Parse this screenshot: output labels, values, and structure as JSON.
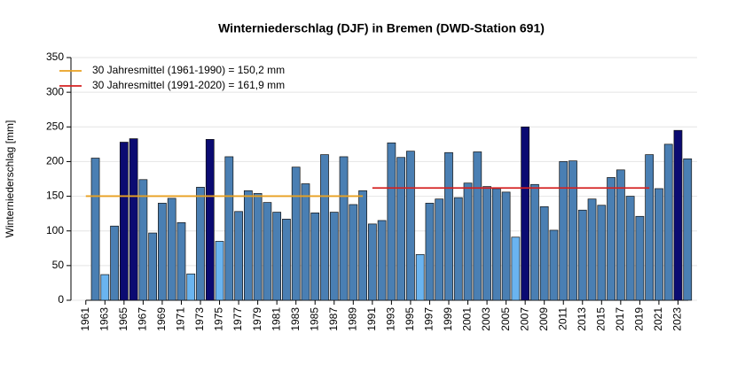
{
  "chart_data": {
    "type": "bar",
    "title": "Winterniederschlag (DJF) in Bremen (DWD-Station 691)",
    "y_label": "Winterniederschlag [mm]",
    "x": [
      1962,
      1963,
      1964,
      1965,
      1966,
      1967,
      1968,
      1969,
      1970,
      1971,
      1972,
      1973,
      1974,
      1975,
      1976,
      1977,
      1978,
      1979,
      1980,
      1981,
      1982,
      1983,
      1984,
      1985,
      1986,
      1987,
      1988,
      1989,
      1990,
      1991,
      1992,
      1993,
      1994,
      1995,
      1996,
      1997,
      1998,
      1999,
      2000,
      2001,
      2002,
      2003,
      2004,
      2005,
      2006,
      2007,
      2008,
      2009,
      2010,
      2011,
      2012,
      2013,
      2014,
      2015,
      2016,
      2017,
      2018,
      2019,
      2020,
      2021,
      2022,
      2023,
      2024
    ],
    "values": [
      205,
      37,
      107,
      228,
      233,
      174,
      97,
      140,
      147,
      112,
      38,
      163,
      232,
      85,
      207,
      128,
      158,
      154,
      141,
      127,
      117,
      192,
      168,
      126,
      210,
      127,
      207,
      138,
      158,
      110,
      115,
      227,
      206,
      215,
      66,
      140,
      146,
      213,
      148,
      169,
      214,
      164,
      161,
      156,
      91,
      250,
      167,
      135,
      101,
      200,
      201,
      130,
      146,
      137,
      177,
      188,
      150,
      121,
      210,
      161,
      225,
      245,
      204
    ],
    "colors": [
      "#4a7fb3",
      "#6ab4f0",
      "#4a7fb3",
      "#0b0b72",
      "#0b0b72",
      "#4a7fb3",
      "#4a7fb3",
      "#4a7fb3",
      "#4a7fb3",
      "#4a7fb3",
      "#6ab4f0",
      "#4a7fb3",
      "#0b0b72",
      "#6ab4f0",
      "#4a7fb3",
      "#4a7fb3",
      "#4a7fb3",
      "#4a7fb3",
      "#4a7fb3",
      "#4a7fb3",
      "#4a7fb3",
      "#4a7fb3",
      "#4a7fb3",
      "#4a7fb3",
      "#4a7fb3",
      "#4a7fb3",
      "#4a7fb3",
      "#4a7fb3",
      "#4a7fb3",
      "#4a7fb3",
      "#4a7fb3",
      "#4a7fb3",
      "#4a7fb3",
      "#4a7fb3",
      "#6ab4f0",
      "#4a7fb3",
      "#4a7fb3",
      "#4a7fb3",
      "#4a7fb3",
      "#4a7fb3",
      "#4a7fb3",
      "#4a7fb3",
      "#4a7fb3",
      "#4a7fb3",
      "#6ab4f0",
      "#0b0b72",
      "#4a7fb3",
      "#4a7fb3",
      "#4a7fb3",
      "#4a7fb3",
      "#4a7fb3",
      "#4a7fb3",
      "#4a7fb3",
      "#4a7fb3",
      "#4a7fb3",
      "#4a7fb3",
      "#4a7fb3",
      "#4a7fb3",
      "#4a7fb3",
      "#4a7fb3",
      "#4a7fb3",
      "#0b0b72",
      "#4a7fb3"
    ],
    "reference_lines": [
      {
        "label": "30 Jahresmittel (1961-1990) = 150,2 mm",
        "value": 150.2,
        "x": [
          1961,
          1990
        ],
        "color": "#e8a020"
      },
      {
        "label": "30 Jahresmittel (1991-2020) = 161,9 mm",
        "value": 161.9,
        "x": [
          1991,
          2020
        ],
        "color": "#d42020"
      }
    ],
    "xlim": [
      1960,
      2025
    ],
    "xticks": [
      1961,
      1963,
      1965,
      1967,
      1969,
      1971,
      1973,
      1975,
      1977,
      1979,
      1981,
      1983,
      1985,
      1987,
      1989,
      1991,
      1993,
      1995,
      1997,
      1999,
      2001,
      2003,
      2005,
      2007,
      2009,
      2011,
      2013,
      2015,
      2017,
      2019,
      2021,
      2023
    ],
    "ylim": [
      0,
      350
    ],
    "yticks": [
      0,
      50,
      100,
      150,
      200,
      250,
      300,
      350
    ],
    "grid": true
  }
}
